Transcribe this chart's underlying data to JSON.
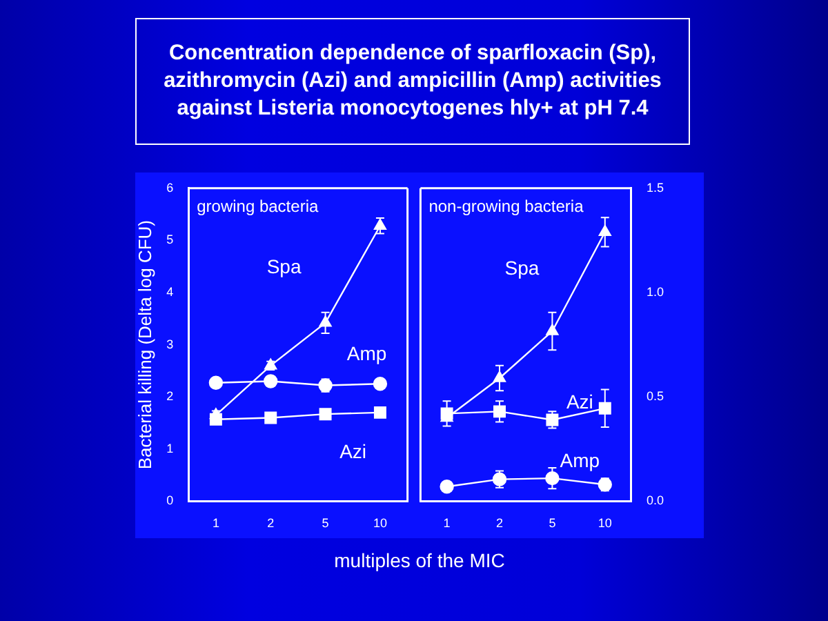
{
  "chart_data": [
    {
      "type": "line",
      "title": "Concentration dependence of sparfloxacin (Sp), azithromycin (Azi) and ampicillin (Amp) activities against Listeria monocytogenes hly+ at pH 7.4",
      "ylabel": "Bacterial killing (Delta log CFU)",
      "xlabel": "multiples of the MIC",
      "annotations": [
        "growing bacteria"
      ],
      "categories": [
        "1",
        "2",
        "5",
        "10"
      ],
      "ylim": [
        0,
        6
      ],
      "yticks": [
        0,
        1,
        2,
        3,
        4,
        5,
        6
      ],
      "grid": false,
      "line_style": "solid",
      "series": [
        {
          "name": "Spa",
          "color": "#ffffff",
          "marker": "triangle",
          "values": [
            1.65,
            2.6,
            3.42,
            5.28
          ],
          "errors": [
            0.08,
            0.08,
            0.2,
            0.15
          ]
        },
        {
          "name": "Amp",
          "color": "#ffffff",
          "marker": "circle",
          "values": [
            2.27,
            2.3,
            2.22,
            2.25
          ],
          "errors": [
            null,
            0.1,
            0.12,
            null
          ]
        },
        {
          "name": "Azi",
          "color": "#ffffff",
          "marker": "square",
          "values": [
            1.57,
            1.6,
            1.67,
            1.7
          ],
          "errors": [
            null,
            null,
            null,
            null
          ]
        }
      ]
    },
    {
      "type": "line",
      "annotations": [
        "non-growing bacteria"
      ],
      "categories": [
        "1",
        "2",
        "5",
        "10"
      ],
      "y2lim": [
        0,
        1.5
      ],
      "y2ticks": [
        {
          "value": 0,
          "label": "0.0"
        },
        {
          "value": 0.5,
          "label": "0.5"
        },
        {
          "value": 1,
          "label": "1.0"
        },
        {
          "value": 1.5,
          "label": "1.5"
        }
      ],
      "grid": false,
      "line_style": "solid",
      "series": [
        {
          "name": "Spa",
          "color": "#ffffff",
          "marker": "triangle",
          "axis": "y2",
          "values": [
            0.4,
            0.59,
            0.815,
            1.29
          ],
          "errors": [
            null,
            0.06,
            0.09,
            0.07
          ]
        },
        {
          "name": "Azi",
          "color": "#ffffff",
          "marker": "square",
          "axis": "y2",
          "values": [
            0.42,
            0.43,
            0.39,
            0.445
          ],
          "errors": [
            0.06,
            0.05,
            0.04,
            0.09
          ]
        },
        {
          "name": "Amp",
          "color": "#ffffff",
          "marker": "circle",
          "axis": "y2",
          "values": [
            0.07,
            0.105,
            0.11,
            0.08
          ],
          "errors": [
            null,
            0.04,
            0.05,
            0.03
          ]
        }
      ]
    }
  ]
}
